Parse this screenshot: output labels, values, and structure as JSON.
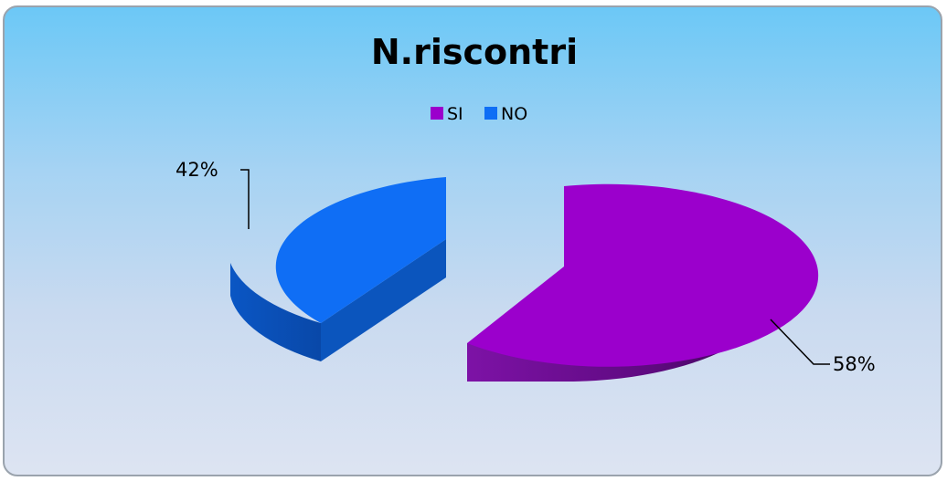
{
  "chart_data": {
    "type": "pie",
    "title": "N.riscontri",
    "categories": [
      "SI",
      "NO"
    ],
    "values": [
      58,
      42
    ],
    "labels": [
      "58%",
      "42%"
    ],
    "colors": [
      "#9b00cc",
      "#0f6ef5"
    ],
    "legend_position": "top",
    "exploded": true,
    "three_d": true
  }
}
